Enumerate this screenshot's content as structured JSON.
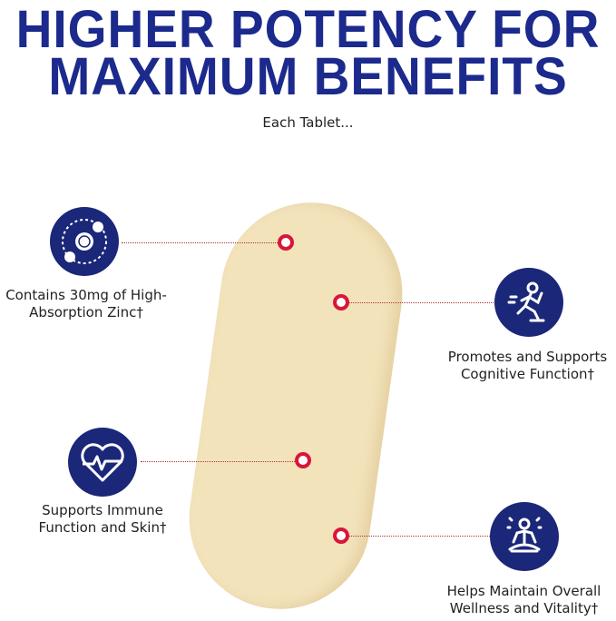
{
  "heading": {
    "line1": "HIGHER POTENCY FOR",
    "line2": "MAXIMUM BENEFITS"
  },
  "subheading": "Each Tablet...",
  "benefits": [
    {
      "icon": "zinc-orbit-icon",
      "line1": "Contains 30mg of High-",
      "line2": "Absorption Zinc†"
    },
    {
      "icon": "running-person-icon",
      "line1": "Promotes and Supports",
      "line2": "Cognitive Function†"
    },
    {
      "icon": "heart-pulse-icon",
      "line1": "Supports Immune",
      "line2": "Function and Skin†"
    },
    {
      "icon": "meditation-icon",
      "line1": "Helps Maintain Overall",
      "line2": "Wellness and Vitality†"
    }
  ],
  "colors": {
    "title": "#1b2a8c",
    "icon_bg": "#1b2778",
    "marker": "#d8163a",
    "tablet": "#f3e3bb"
  }
}
